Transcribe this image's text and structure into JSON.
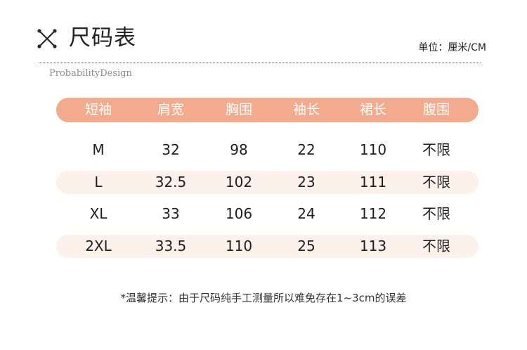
{
  "header": {
    "title": "尺码表",
    "unit": "单位：厘米/CM",
    "brand": "ProbabilityDesign"
  },
  "colors": {
    "accent": "#f4ab8d",
    "row_tint": "#fdf1ec"
  },
  "icons": {
    "title_icon": "crossed-tools-icon"
  },
  "table": {
    "columns": [
      "短袖",
      "肩宽",
      "胸围",
      "袖长",
      "裙长",
      "腹围"
    ],
    "rows": [
      [
        "M",
        "32",
        "98",
        "22",
        "110",
        "不限"
      ],
      [
        "L",
        "32.5",
        "102",
        "23",
        "111",
        "不限"
      ],
      [
        "XL",
        "33",
        "106",
        "24",
        "112",
        "不限"
      ],
      [
        "2XL",
        "33.5",
        "110",
        "25",
        "113",
        "不限"
      ]
    ]
  },
  "footer": {
    "note": "*温馨提示：由于尺码纯手工测量所以难免存在1~3cm的误差"
  }
}
